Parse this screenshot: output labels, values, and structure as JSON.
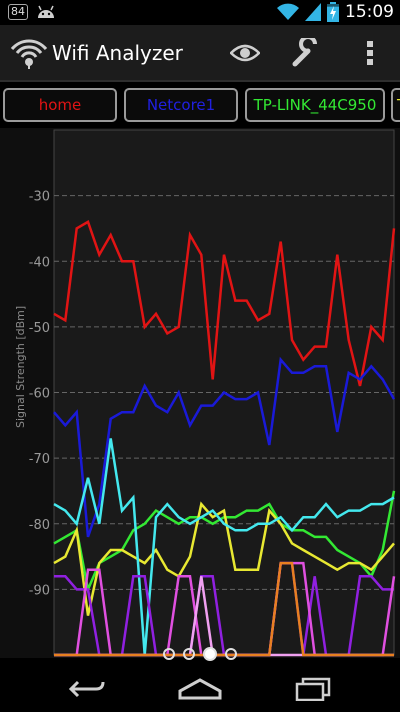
{
  "status": {
    "badge": "84",
    "time": "15:09",
    "battery_level": 0.85
  },
  "actionbar": {
    "title": "Wifi Analyzer"
  },
  "tabs": [
    {
      "label": "home",
      "color": "#e11414"
    },
    {
      "label": "Netcore1",
      "color": "#2020e0"
    },
    {
      "label": "TP-LINK_44C950",
      "color": "#33e833"
    },
    {
      "label": "T",
      "color": "#e8e832"
    }
  ],
  "pager": {
    "pages": 4,
    "active": 2
  },
  "chart_data": {
    "type": "line",
    "ylabel": "Signal Strength [dBm]",
    "ylim": [
      -100,
      -20
    ],
    "yticks": [
      -30,
      -40,
      -50,
      -60,
      -70,
      -80,
      -90
    ],
    "grid": true,
    "series": [
      {
        "name": "home",
        "color": "#e11414",
        "values": [
          -48,
          -49,
          -35,
          -34,
          -39,
          -36,
          -40,
          -40,
          -50,
          -48,
          -51,
          -50,
          -36,
          -39,
          -58,
          -39,
          -46,
          -46,
          -49,
          -48,
          -37,
          -52,
          -55,
          -53,
          -53,
          -39,
          -52,
          -59,
          -50,
          -52,
          -35
        ]
      },
      {
        "name": "Netcore1",
        "color": "#1a1ad8",
        "values": [
          -63,
          -65,
          -63,
          -82,
          -77,
          -64,
          -63,
          -63,
          -59,
          -62,
          -63,
          -60,
          -65,
          -62,
          -62,
          -60,
          -61,
          -61,
          -60,
          -68,
          -55,
          -57,
          -57,
          -56,
          -56,
          -66,
          -57,
          -58,
          -56,
          -58,
          -61
        ]
      },
      {
        "name": "TP-LINK_44C950",
        "color": "#33e833",
        "values": [
          -83,
          -82,
          -81,
          -90,
          -86,
          -85,
          -84,
          -81,
          -80,
          -78,
          -79,
          -80,
          -79,
          -79,
          -80,
          -79,
          -79,
          -78,
          -78,
          -77,
          -80,
          -81,
          -81,
          -82,
          -82,
          -84,
          -85,
          -86,
          -88,
          -84,
          -75
        ]
      },
      {
        "name": "T",
        "color": "#e8e832",
        "values": [
          -86,
          -85,
          -81,
          -94,
          -86,
          -84,
          -84,
          -85,
          -86,
          -84,
          -87,
          -88,
          -85,
          -77,
          -79,
          -78,
          -87,
          -87,
          -87,
          -78,
          -80,
          -83,
          -84,
          -85,
          -86,
          -87,
          -86,
          -86,
          -87,
          -85,
          -83
        ]
      },
      {
        "name": "",
        "color": "#44e8ee",
        "values": [
          -77,
          -78,
          -80,
          -73,
          -80,
          -67,
          -78,
          -76,
          -100,
          -79,
          -77,
          -79,
          -80,
          -79,
          -78,
          -80,
          -81,
          -81,
          -80,
          -80,
          -79,
          -81,
          -79,
          -79,
          -77,
          -79,
          -78,
          -78,
          -77,
          -77,
          -76
        ]
      },
      {
        "name": "",
        "color": "#9020e0",
        "values": [
          -88,
          -88,
          -90,
          -90,
          -100,
          -100,
          -100,
          -88,
          -88,
          -100,
          -100,
          -100,
          -100,
          -88,
          -88,
          -100,
          -100,
          -100,
          -100,
          -100,
          -86,
          -86,
          -100,
          -88,
          -100,
          -100,
          -100,
          -88,
          -88,
          -90,
          -90
        ]
      },
      {
        "name": "",
        "color": "#e050e0",
        "values": [
          -100,
          -100,
          -100,
          -87,
          -87,
          -100,
          -100,
          -100,
          -100,
          -100,
          -100,
          -88,
          -88,
          -100,
          -100,
          -100,
          -100,
          -100,
          -100,
          -100,
          -86,
          -86,
          -86,
          -100,
          -100,
          -100,
          -100,
          -100,
          -100,
          -100,
          -88
        ]
      },
      {
        "name": "",
        "color": "#f0a0f0",
        "values": [
          -100,
          -100,
          -100,
          -100,
          -100,
          -100,
          -100,
          -100,
          -100,
          -100,
          -100,
          -100,
          -100,
          -88,
          -100,
          -100,
          -100,
          -100,
          -100,
          -100,
          -100,
          -100,
          -100,
          -100,
          -100,
          -100,
          -100,
          -100,
          -100,
          -100,
          -100
        ]
      },
      {
        "name": "",
        "color": "#e88020",
        "values": [
          -100,
          -100,
          -100,
          -100,
          -100,
          -100,
          -100,
          -100,
          -100,
          -100,
          -100,
          -100,
          -100,
          -100,
          -100,
          -100,
          -100,
          -100,
          -100,
          -100,
          -86,
          -86,
          -100,
          -100,
          -100,
          -100,
          -100,
          -100,
          -100,
          -100,
          -100
        ]
      }
    ]
  }
}
